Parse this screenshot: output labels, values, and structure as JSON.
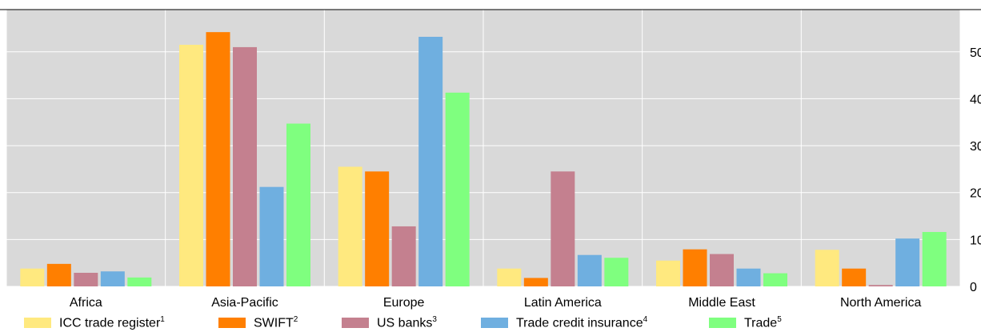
{
  "chart_data": {
    "type": "bar",
    "categories": [
      "Africa",
      "Asia-Pacific",
      "Europe",
      "Latin America",
      "Middle East",
      "North America"
    ],
    "series": [
      {
        "name": "ICC trade register",
        "sup": "1",
        "color": "#FFE97F",
        "values": [
          3.8,
          51.5,
          25.5,
          3.8,
          5.5,
          7.8
        ]
      },
      {
        "name": "SWIFT",
        "sup": "2",
        "color": "#FF7F00",
        "values": [
          4.8,
          54.2,
          24.5,
          1.8,
          7.9,
          3.8
        ]
      },
      {
        "name": "US banks",
        "sup": "3",
        "color": "#C4808F",
        "values": [
          2.9,
          51.0,
          12.8,
          24.5,
          6.9,
          0.3
        ]
      },
      {
        "name": "Trade credit insurance",
        "sup": "4",
        "color": "#6FAFE0",
        "values": [
          3.2,
          21.2,
          53.2,
          6.7,
          3.8,
          10.2
        ]
      },
      {
        "name": "Trade",
        "sup": "5",
        "color": "#7FFF7F",
        "values": [
          1.9,
          34.7,
          41.3,
          6.1,
          2.8,
          11.6
        ]
      }
    ],
    "yticks": [
      "0",
      "10",
      "20",
      "30",
      "40",
      "50"
    ],
    "ylim": [
      0,
      59
    ],
    "grid": true,
    "legend_position": "bottom"
  }
}
